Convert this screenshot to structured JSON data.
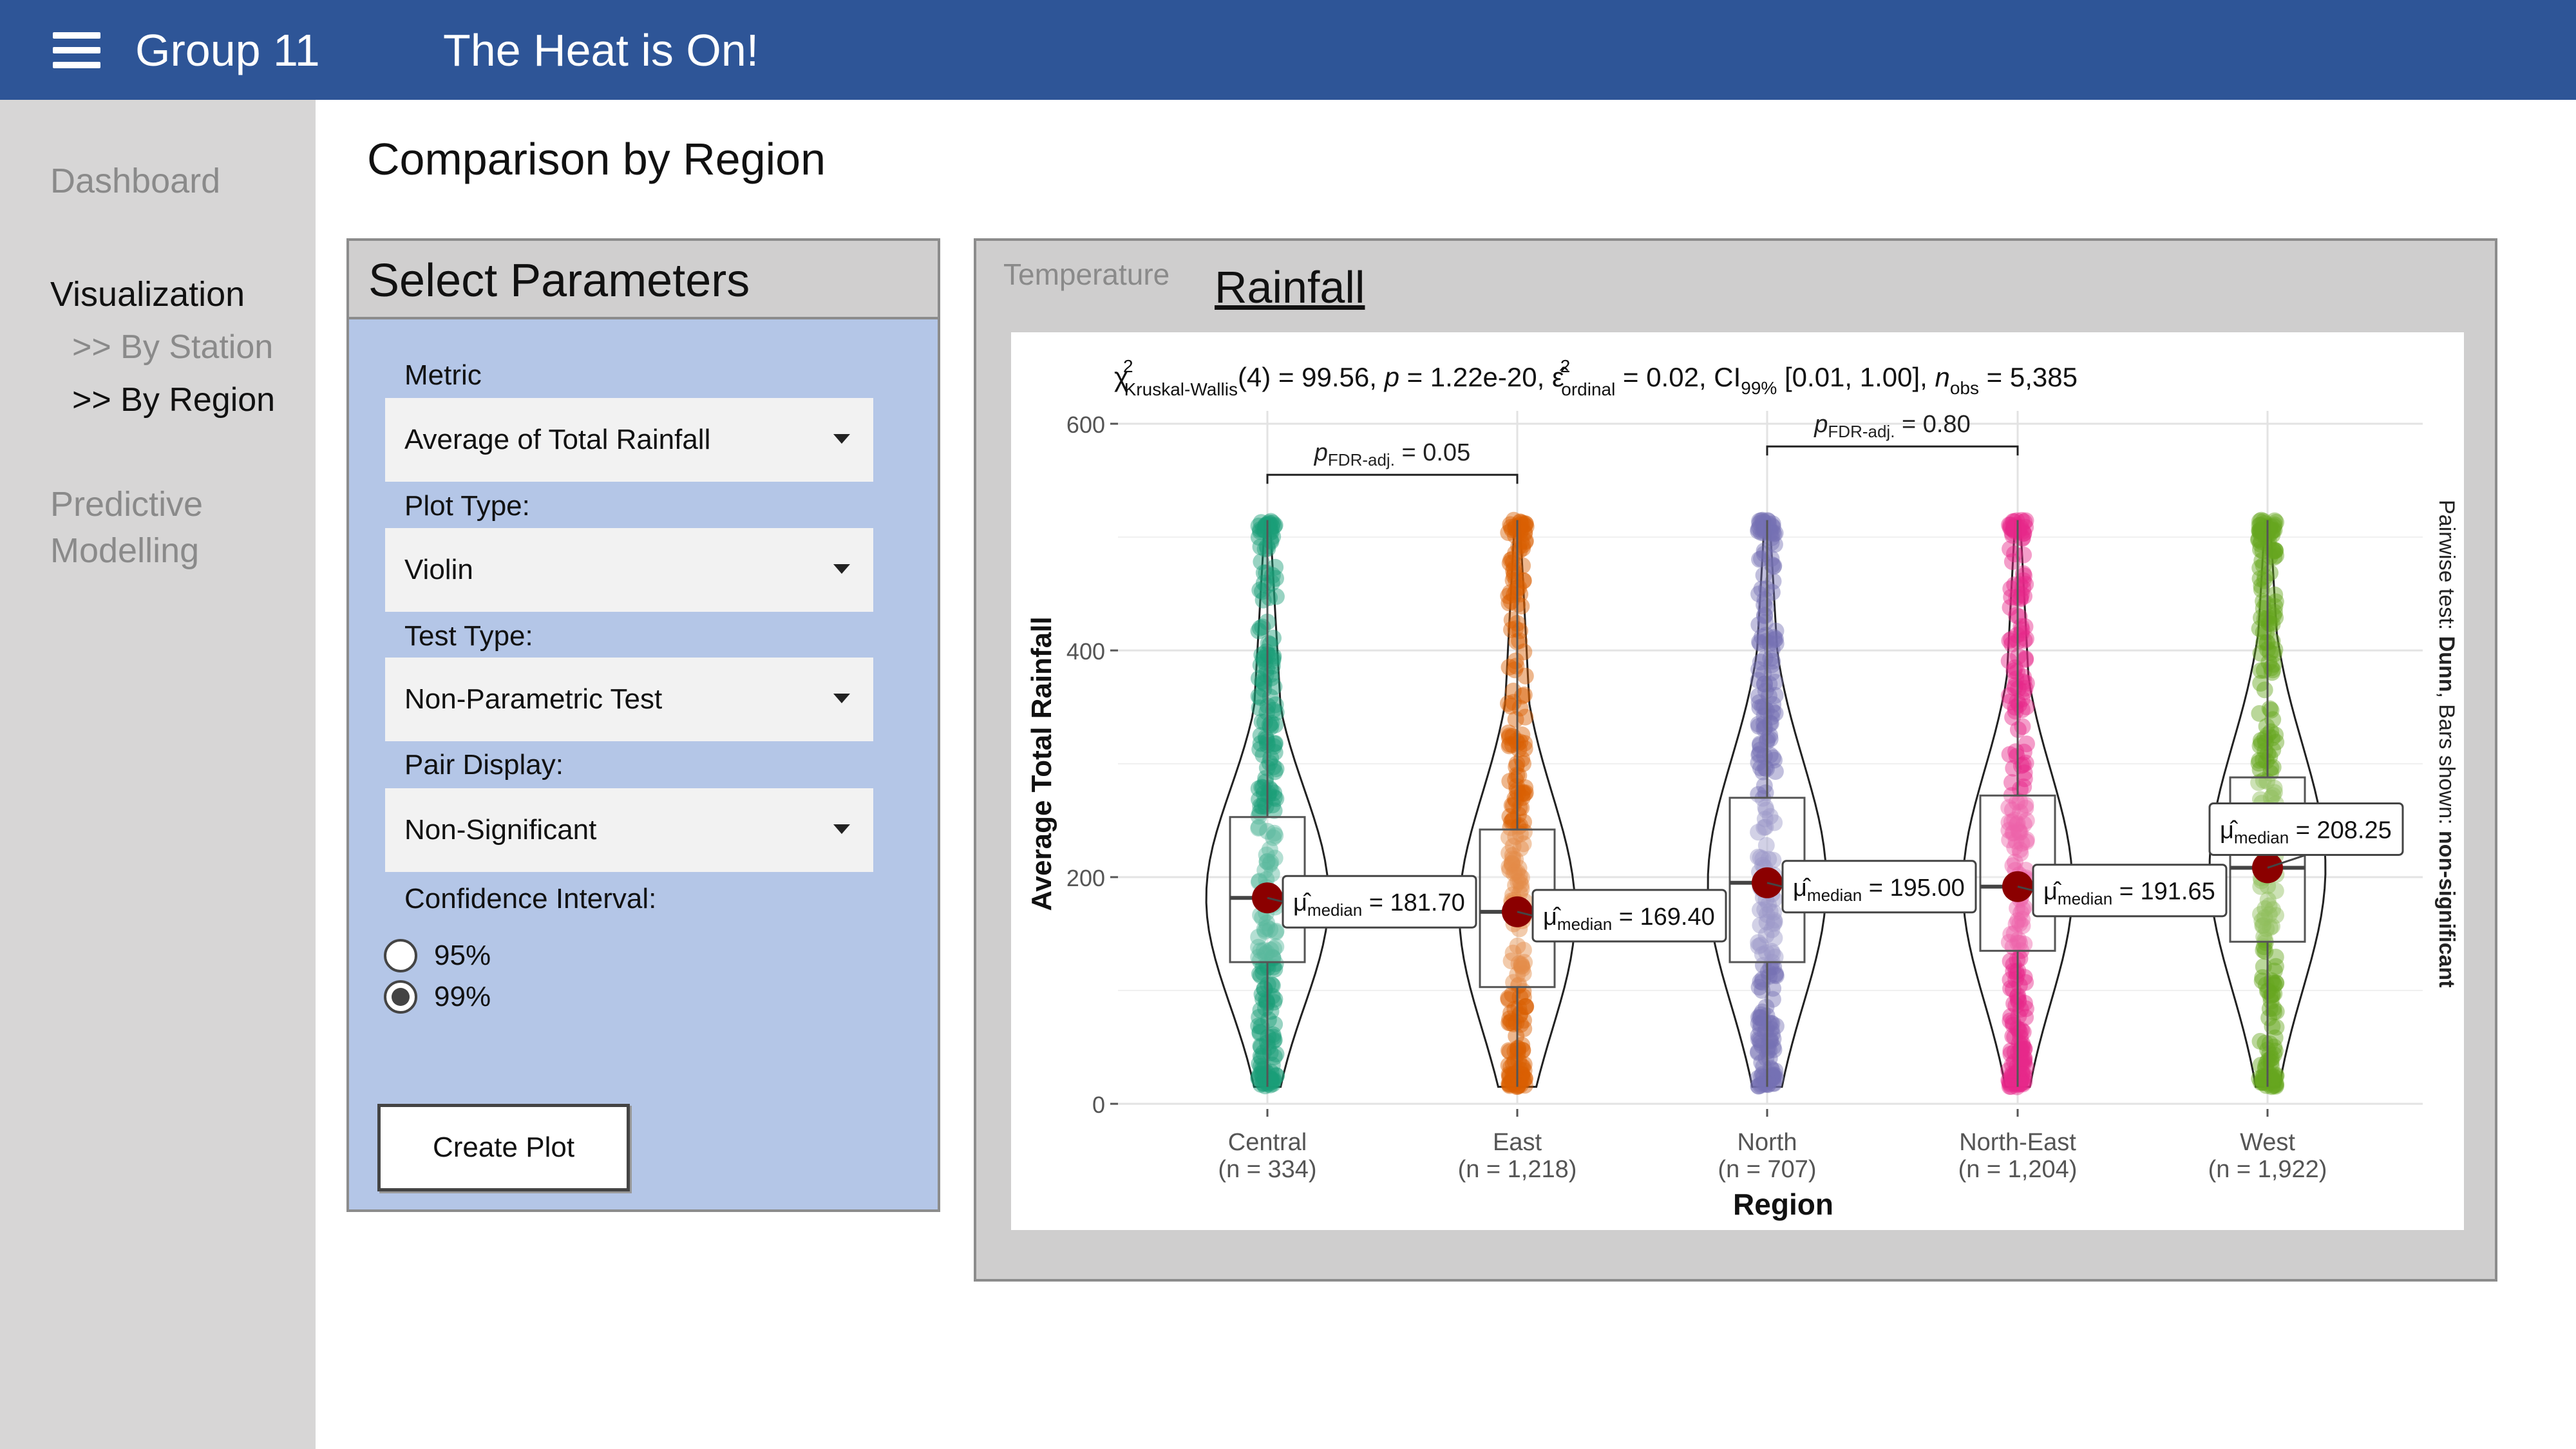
{
  "header": {
    "menu_icon": "hamburger-menu-icon",
    "brand": "Group 11",
    "title": "The Heat is On!"
  },
  "sidebar": {
    "dashboard": "Dashboard",
    "visualization": "Visualization",
    "by_station": ">> By Station",
    "by_region": ">> By Region",
    "predictive_line1": "Predictive",
    "predictive_line2": "Modelling"
  },
  "page": {
    "title": "Comparison by Region"
  },
  "params": {
    "heading": "Select Parameters",
    "metric_label": "Metric",
    "metric_value": "Average of Total Rainfall",
    "plot_type_label": "Plot Type:",
    "plot_type_value": "Violin",
    "test_type_label": "Test Type:",
    "test_type_value": "Non-Parametric Test",
    "pair_display_label": "Pair Display:",
    "pair_display_value": "Non-Significant",
    "ci_label": "Confidence Interval:",
    "ci_options": [
      "95%",
      "99%"
    ],
    "ci_selected": "99%",
    "create_button": "Create Plot"
  },
  "tabs": {
    "temperature": "Temperature",
    "rainfall": "Rainfall",
    "active": "Rainfall"
  },
  "chart_data": {
    "type": "violin",
    "subtitle": {
      "chi_sym": "χ",
      "chi_sup": "2",
      "chi_sub": "Kruskal-Wallis",
      "stat_part": "(4) = 99.56, ",
      "p_sym": "p",
      "p_part": " = 1.22e-20, ",
      "eps_sym": "ε̂",
      "eps_sup": "2",
      "eps_sub": "ordinal",
      "eps_part": " = 0.02, CI",
      "ci_sub": "99%",
      "ci_part": " [0.01, 1.00], ",
      "n_sym": "n",
      "n_sub": "obs",
      "n_part": " = 5,385"
    },
    "xlabel": "Region",
    "ylabel": "Average Total Rainfall",
    "ylim": [
      0,
      600
    ],
    "yticks": [
      0,
      200,
      400,
      600
    ],
    "grid": true,
    "caption_parts": [
      "Pairwise test: ",
      "Dunn",
      ", Bars shown: ",
      "non-significant"
    ],
    "categories": [
      "Central",
      "East",
      "North",
      "North-East",
      "West"
    ],
    "n_labels": [
      "(n = 334)",
      "(n = 1,218)",
      "(n = 707)",
      "(n = 1,204)",
      "(n = 1,922)"
    ],
    "colors": [
      "#1b9e77",
      "#d95f02",
      "#7570b3",
      "#e7298a",
      "#66a61e"
    ],
    "medians": [
      181.7,
      169.4,
      195.0,
      191.65,
      208.25
    ],
    "median_labels": [
      "181.70",
      "169.40",
      "195.00",
      "191.65",
      "208.25"
    ],
    "median_symbol": "μ̂",
    "median_sub": "median",
    "q1": [
      125,
      103,
      125,
      135,
      143
    ],
    "q3": [
      253,
      242,
      270,
      272,
      288
    ],
    "whisker_low": [
      15,
      15,
      15,
      15,
      15
    ],
    "whisker_high": [
      515,
      515,
      515,
      515,
      515
    ],
    "pairs": [
      {
        "from": "Central",
        "to": "East",
        "y": 555,
        "label_p": "p",
        "label_sub": "FDR-adj.",
        "label_val": " = 0.05"
      },
      {
        "from": "North",
        "to": "North-East",
        "y": 580,
        "label_p": "p",
        "label_sub": "FDR-adj.",
        "label_val": " = 0.80"
      }
    ]
  }
}
